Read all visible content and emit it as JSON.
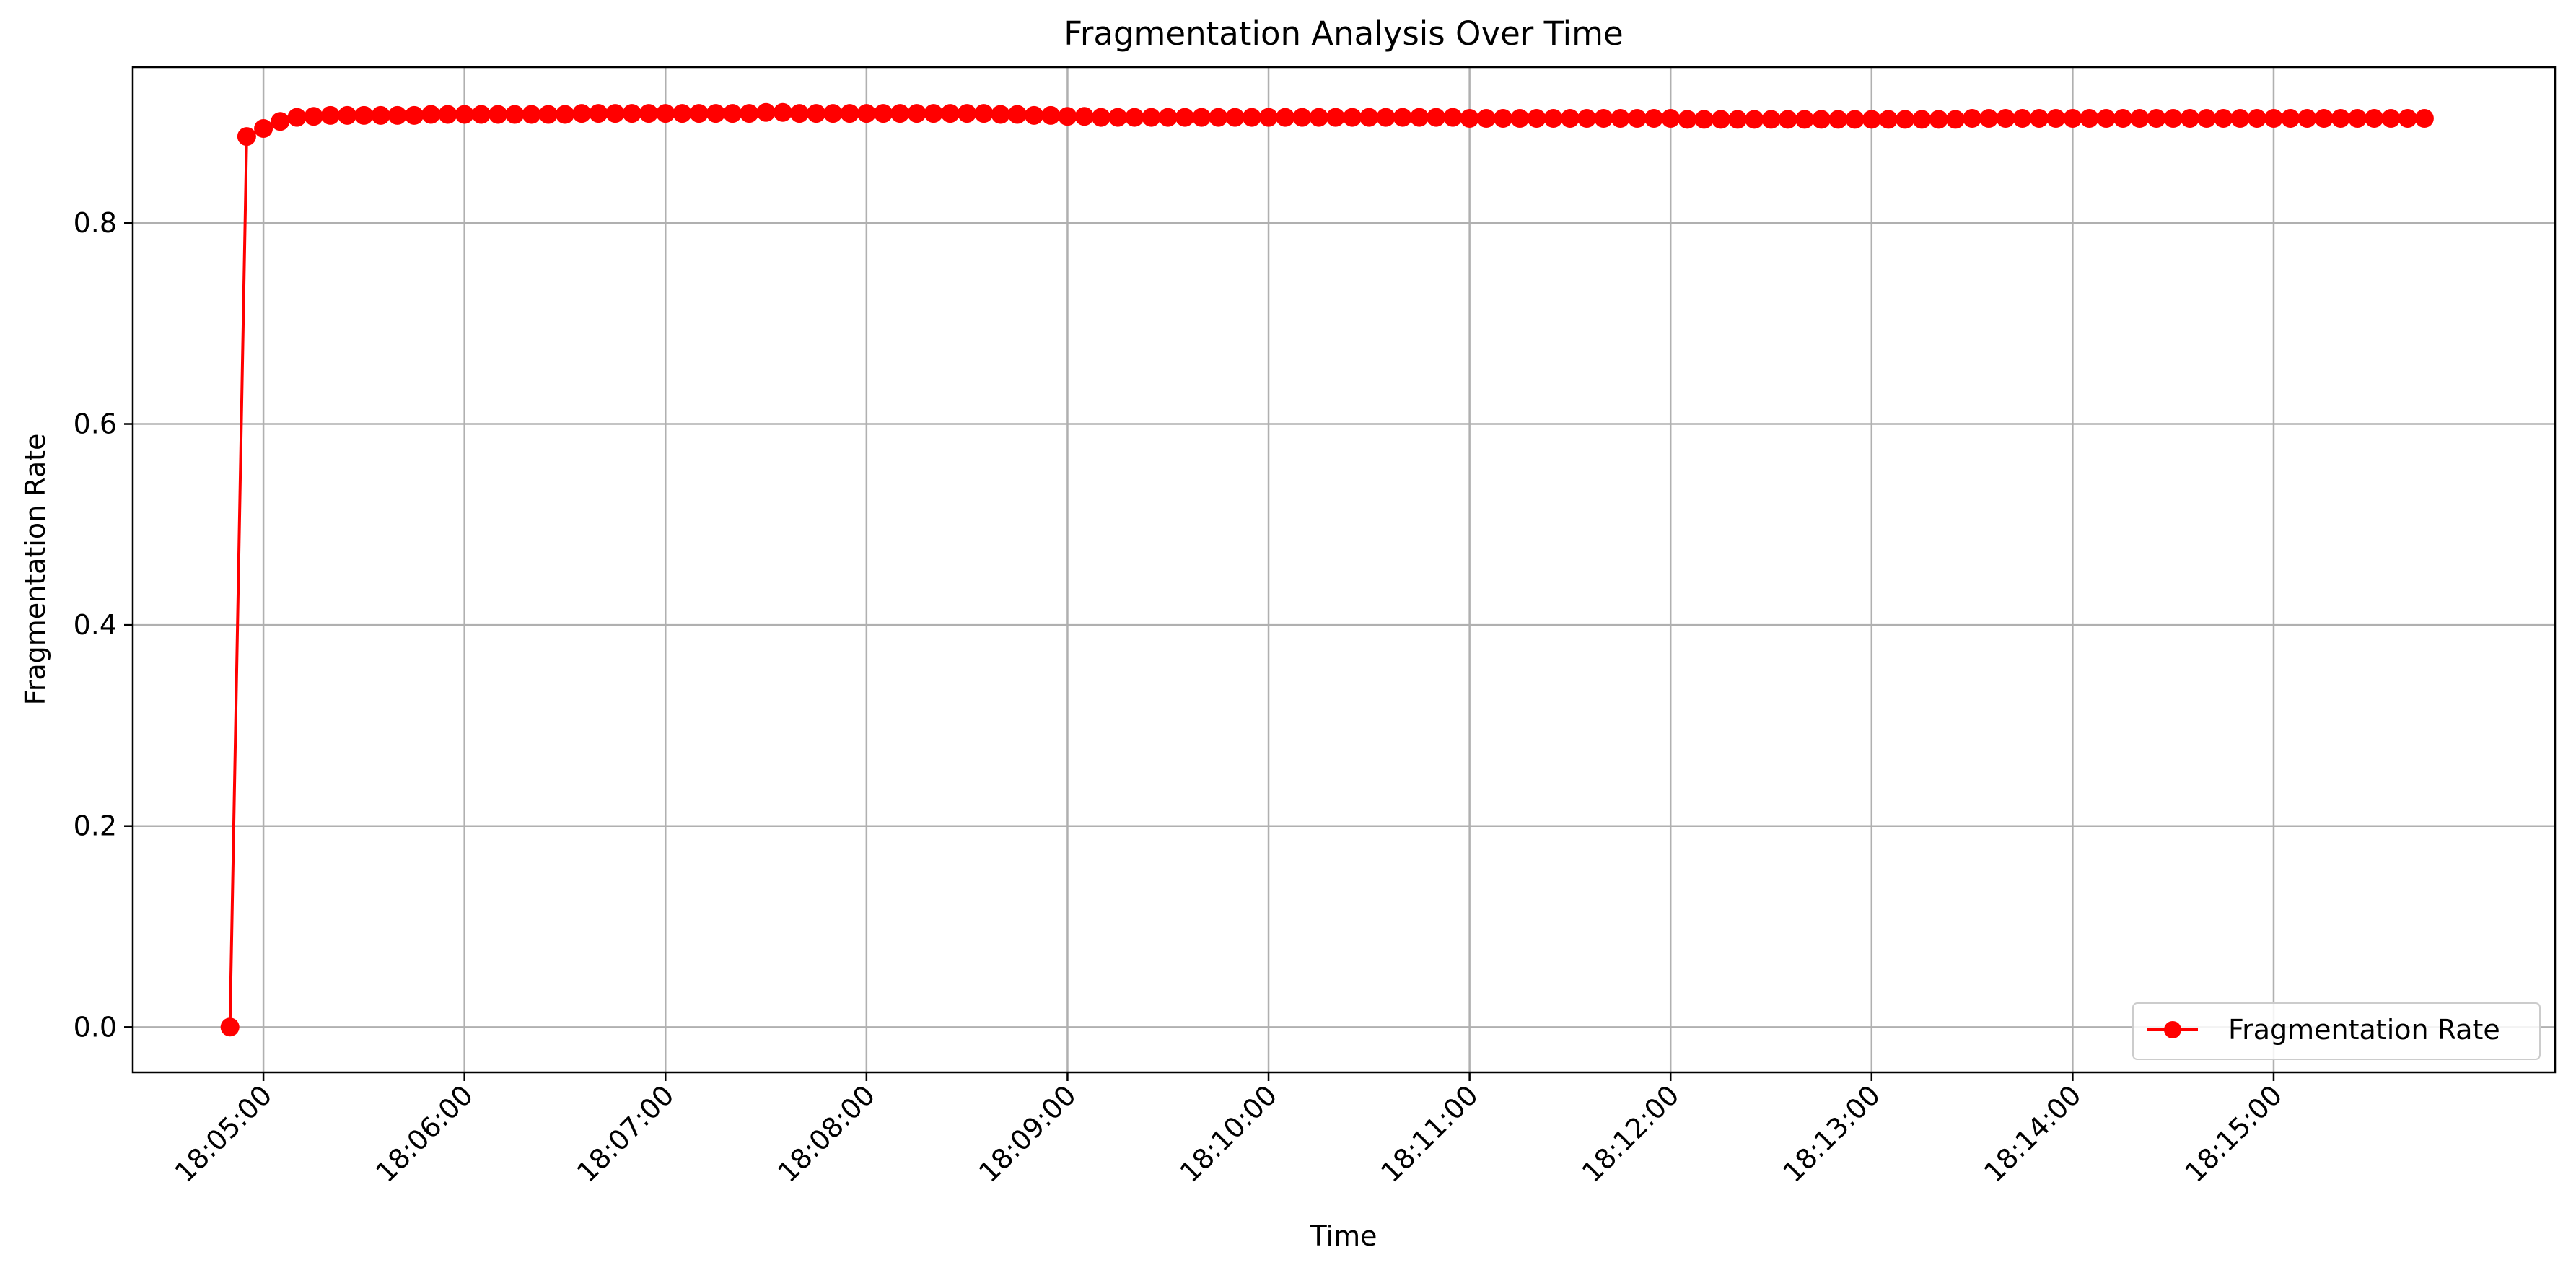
{
  "chart_data": {
    "type": "line",
    "title": "Fragmentation Analysis Over Time",
    "xlabel": "Time",
    "ylabel": "Fragmentation Rate",
    "x_tick_labels": [
      "18:05:00",
      "18:06:00",
      "18:07:00",
      "18:08:00",
      "18:09:00",
      "18:10:00",
      "18:11:00",
      "18:12:00",
      "18:13:00",
      "18:14:00",
      "18:15:00"
    ],
    "x_tick_rotation_deg": 45,
    "y_ticks": [
      0.0,
      0.2,
      0.4,
      0.6,
      0.8
    ],
    "y_tick_labels": [
      "0.0",
      "0.2",
      "0.4",
      "0.6",
      "0.8"
    ],
    "xlim": [
      "18:04:21",
      "18:16:24"
    ],
    "ylim": [
      -0.045,
      0.955
    ],
    "grid": true,
    "legend": {
      "placement": "lower-right",
      "entries": [
        "Fragmentation Rate"
      ]
    },
    "series": [
      {
        "name": "Fragmentation Rate",
        "color": "#ff0000",
        "marker": "circle",
        "x_start": "18:04:50",
        "x_step_seconds": 5,
        "x_note": "one sample every 5 seconds from 18:04:50 through 18:15:25",
        "values": [
          0.0,
          0.886,
          0.894,
          0.901,
          0.905,
          0.906,
          0.907,
          0.907,
          0.907,
          0.907,
          0.907,
          0.907,
          0.908,
          0.908,
          0.908,
          0.908,
          0.908,
          0.908,
          0.908,
          0.908,
          0.908,
          0.909,
          0.909,
          0.909,
          0.909,
          0.909,
          0.909,
          0.909,
          0.909,
          0.909,
          0.909,
          0.909,
          0.91,
          0.91,
          0.909,
          0.909,
          0.909,
          0.909,
          0.909,
          0.909,
          0.909,
          0.909,
          0.909,
          0.909,
          0.909,
          0.909,
          0.908,
          0.908,
          0.907,
          0.907,
          0.906,
          0.906,
          0.905,
          0.905,
          0.905,
          0.905,
          0.905,
          0.905,
          0.905,
          0.905,
          0.905,
          0.905,
          0.905,
          0.905,
          0.905,
          0.905,
          0.905,
          0.905,
          0.905,
          0.905,
          0.905,
          0.905,
          0.905,
          0.905,
          0.904,
          0.904,
          0.904,
          0.904,
          0.904,
          0.904,
          0.904,
          0.904,
          0.904,
          0.904,
          0.904,
          0.904,
          0.904,
          0.903,
          0.903,
          0.903,
          0.903,
          0.903,
          0.903,
          0.903,
          0.903,
          0.903,
          0.903,
          0.903,
          0.903,
          0.903,
          0.903,
          0.903,
          0.903,
          0.903,
          0.904,
          0.904,
          0.904,
          0.904,
          0.904,
          0.904,
          0.904,
          0.904,
          0.904,
          0.904,
          0.904,
          0.904,
          0.904,
          0.904,
          0.904,
          0.904,
          0.904,
          0.904,
          0.904,
          0.904,
          0.904,
          0.904,
          0.904,
          0.904,
          0.904,
          0.904,
          0.904,
          0.904
        ]
      }
    ]
  }
}
